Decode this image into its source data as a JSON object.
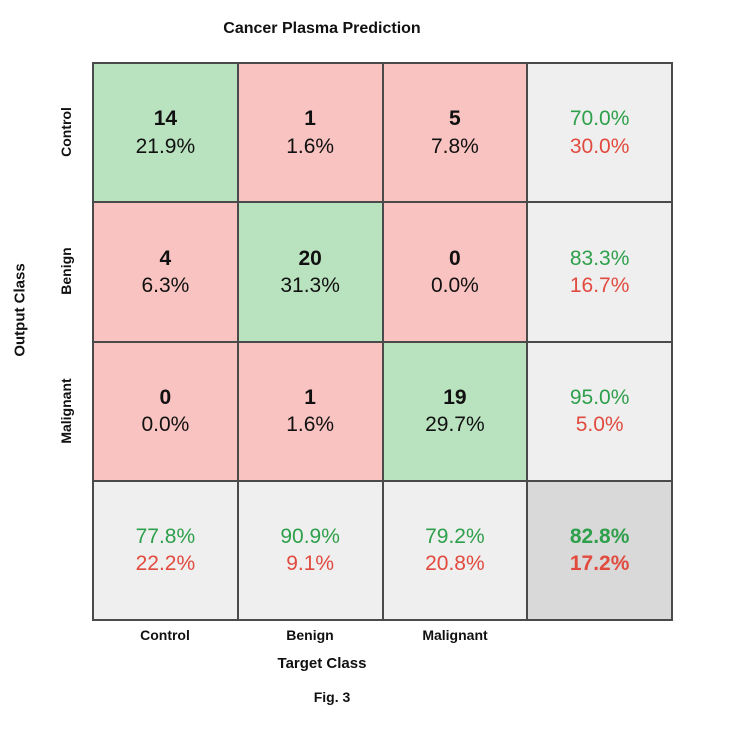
{
  "caption": "Fig. 3",
  "colors": {
    "correct_cell_bg": "#b9e2be",
    "error_cell_bg": "#f8c3c0",
    "summary_cell_bg": "#efefef",
    "overall_cell_bg": "#d9d9d9",
    "grid_line": "#4a4a4a",
    "positive_text": "#2ea04b",
    "negative_text": "#e14b3f",
    "count_text": "#111111"
  },
  "chart_data": {
    "type": "heatmap",
    "subtype": "confusion_matrix",
    "title": "Cancer Plasma Prediction",
    "xlabel": "Target Class",
    "ylabel": "Output Class",
    "classes": [
      "Control",
      "Benign",
      "Malignant"
    ],
    "counts": [
      [
        14,
        1,
        5
      ],
      [
        4,
        20,
        0
      ],
      [
        0,
        1,
        19
      ]
    ],
    "count_pcts": [
      [
        "21.9%",
        "1.6%",
        "7.8%"
      ],
      [
        "6.3%",
        "31.3%",
        "0.0%"
      ],
      [
        "0.0%",
        "1.6%",
        "29.7%"
      ]
    ],
    "row_summary": [
      {
        "pos": "70.0%",
        "neg": "30.0%"
      },
      {
        "pos": "83.3%",
        "neg": "16.7%"
      },
      {
        "pos": "95.0%",
        "neg": "5.0%"
      }
    ],
    "col_summary": [
      {
        "pos": "77.8%",
        "neg": "22.2%"
      },
      {
        "pos": "90.9%",
        "neg": "9.1%"
      },
      {
        "pos": "79.2%",
        "neg": "20.8%"
      }
    ],
    "overall": {
      "pos": "82.8%",
      "neg": "17.2%"
    },
    "legend_position": "none",
    "grid": true
  }
}
